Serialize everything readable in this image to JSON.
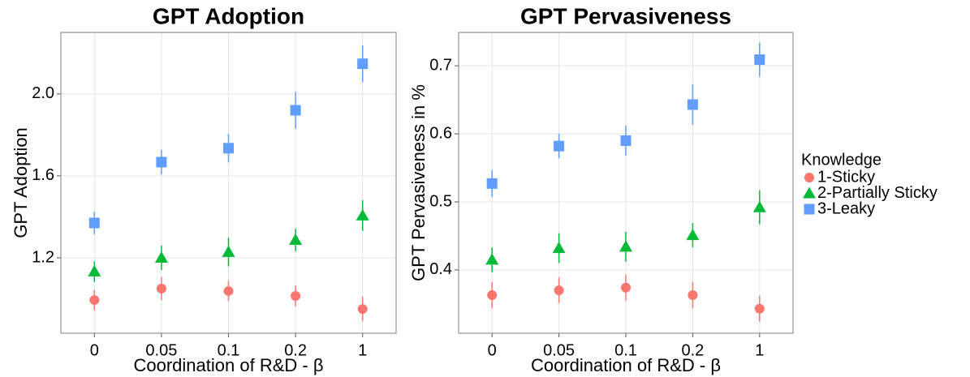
{
  "chart_data": [
    {
      "type": "errorbar",
      "title": "GPT Adoption",
      "x_label": "Coordination of R&D - β",
      "y_label": "GPT Adoption",
      "categories": [
        "0",
        "0.05",
        "0.1",
        "0.2",
        "1"
      ],
      "ylim": [
        0.832,
        2.3
      ],
      "yticks": [
        1.2,
        1.6,
        {
          "value": 2,
          "label": "2.0"
        }
      ],
      "grid": true,
      "legend_title": "Knowledge",
      "legend_position": "right",
      "series": [
        {
          "name": "1-Sticky",
          "color": "#F8766D",
          "marker": "circle",
          "values": [
            0.994,
            1.05,
            1.038,
            1.014,
            0.95
          ],
          "errors": [
            0.05,
            0.057,
            0.05,
            0.05,
            0.06
          ]
        },
        {
          "name": "2-Partially Sticky",
          "color": "#00BA38",
          "marker": "triangle",
          "values": [
            1.133,
            1.2,
            1.228,
            1.287,
            1.406
          ],
          "errors": [
            0.05,
            0.06,
            0.07,
            0.055,
            0.075
          ]
        },
        {
          "name": "3-Leaky",
          "color": "#619CFF",
          "marker": "square",
          "values": [
            1.37,
            1.667,
            1.735,
            1.92,
            2.147
          ],
          "errors": [
            0.055,
            0.06,
            0.07,
            0.09,
            0.09
          ]
        }
      ]
    },
    {
      "type": "errorbar",
      "title": "GPT Pervasiveness",
      "x_label": "Coordination of R&D - β",
      "y_label": "GPT Pervasiveness in %",
      "categories": [
        "0",
        "0.05",
        "0.1",
        "0.2",
        "1"
      ],
      "ylim": [
        0.307,
        0.749
      ],
      "yticks": [
        0.4,
        0.5,
        0.6,
        0.7
      ],
      "grid": true,
      "series": [
        {
          "name": "1-Sticky",
          "color": "#F8766D",
          "marker": "circle",
          "values": [
            0.363,
            0.37,
            0.374,
            0.363,
            0.343
          ],
          "errors": [
            0.019,
            0.019,
            0.019,
            0.019,
            0.019
          ]
        },
        {
          "name": "2-Partially Sticky",
          "color": "#00BA38",
          "marker": "triangle",
          "values": [
            0.415,
            0.432,
            0.434,
            0.451,
            0.492
          ],
          "errors": [
            0.018,
            0.022,
            0.022,
            0.018,
            0.025
          ]
        },
        {
          "name": "3-Leaky",
          "color": "#619CFF",
          "marker": "square",
          "values": [
            0.527,
            0.582,
            0.59,
            0.643,
            0.709
          ],
          "errors": [
            0.02,
            0.018,
            0.022,
            0.03,
            0.025
          ]
        }
      ]
    }
  ]
}
